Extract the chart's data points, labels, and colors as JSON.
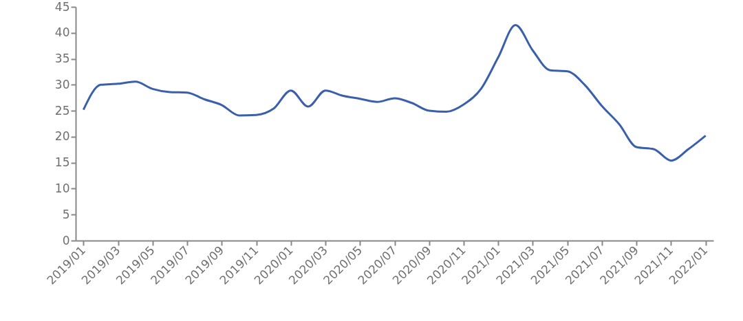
{
  "chart_data": {
    "type": "line",
    "categories": [
      "2019/01",
      null,
      "2019/03",
      null,
      "2019/05",
      null,
      "2019/07",
      null,
      "2019/09",
      null,
      "2019/11",
      null,
      "2020/01",
      null,
      "2020/03",
      null,
      "2020/05",
      null,
      "2020/07",
      null,
      "2020/09",
      null,
      "2020/11",
      null,
      "2021/01",
      null,
      "2021/03",
      null,
      "2021/05",
      null,
      "2021/07",
      null,
      "2021/09",
      null,
      "2021/11",
      null,
      "2022/01"
    ],
    "series": [
      {
        "color": "#3a5fab",
        "values": [
          25.2,
          30.0,
          30.2,
          30.6,
          29.2,
          28.6,
          28.5,
          27.2,
          26.1,
          24.1,
          24.2,
          25.4,
          28.9,
          25.8,
          28.9,
          27.9,
          27.3,
          26.7,
          27.4,
          26.5,
          25.0,
          24.8,
          26.2,
          29.2,
          35.3,
          41.5,
          36.6,
          32.8,
          32.6,
          30.0,
          25.9,
          22.4,
          18.0,
          17.6,
          15.4,
          17.6,
          20.2
        ]
      }
    ],
    "ylim": [
      0,
      45
    ],
    "yticks": [
      0,
      5,
      10,
      15,
      20,
      25,
      30,
      35,
      40,
      45
    ],
    "grid": false,
    "marker": "none",
    "line_style": "solid"
  }
}
